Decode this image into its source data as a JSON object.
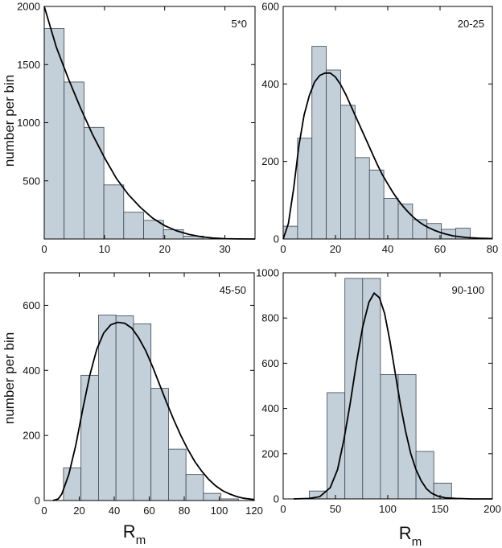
{
  "figure": {
    "ylabel_top": "number per bin",
    "ylabel_bottom": "number per bin",
    "xlabel_left": {
      "main": "R",
      "sub": "m"
    },
    "xlabel_right": {
      "main": "R",
      "sub": "m"
    }
  },
  "colors": {
    "bar_fill": "#c3cfd9",
    "bar_stroke": "#3c4650",
    "curve": "#000000"
  },
  "chart_data": [
    {
      "type": "bar",
      "label": "5*0",
      "xlim": [
        0,
        35
      ],
      "ylim": [
        0,
        2000
      ],
      "xticks": [
        0,
        10,
        20,
        30
      ],
      "yticks": [
        500,
        1000,
        1500,
        2000
      ],
      "bins": [
        {
          "x0": 0,
          "x1": 3.3,
          "value": 1810
        },
        {
          "x0": 3.3,
          "x1": 6.6,
          "value": 1350
        },
        {
          "x0": 6.6,
          "x1": 9.9,
          "value": 960
        },
        {
          "x0": 9.9,
          "x1": 13.2,
          "value": 465
        },
        {
          "x0": 13.2,
          "x1": 16.5,
          "value": 230
        },
        {
          "x0": 16.5,
          "x1": 19.8,
          "value": 160
        },
        {
          "x0": 19.8,
          "x1": 23.1,
          "value": 80
        },
        {
          "x0": 23.1,
          "x1": 26.4,
          "value": 25
        }
      ],
      "fit": [
        [
          0,
          2000
        ],
        [
          2,
          1650
        ],
        [
          4,
          1380
        ],
        [
          6,
          1130
        ],
        [
          8,
          900
        ],
        [
          10,
          700
        ],
        [
          12,
          520
        ],
        [
          14,
          380
        ],
        [
          16,
          270
        ],
        [
          18,
          180
        ],
        [
          20,
          115
        ],
        [
          22,
          70
        ],
        [
          24,
          40
        ],
        [
          26,
          20
        ],
        [
          28,
          8
        ],
        [
          30,
          3
        ],
        [
          32,
          1
        ],
        [
          35,
          0
        ]
      ]
    },
    {
      "type": "bar",
      "label": "20-25",
      "xlim": [
        0,
        80
      ],
      "ylim": [
        0,
        600
      ],
      "xticks": [
        0,
        20,
        40,
        60,
        80
      ],
      "yticks": [
        0,
        200,
        400,
        600
      ],
      "bins": [
        {
          "x0": 0,
          "x1": 5.5,
          "value": 33
        },
        {
          "x0": 5.5,
          "x1": 11,
          "value": 260
        },
        {
          "x0": 11,
          "x1": 16.5,
          "value": 497
        },
        {
          "x0": 16.5,
          "x1": 22,
          "value": 436
        },
        {
          "x0": 22,
          "x1": 27.5,
          "value": 345
        },
        {
          "x0": 27.5,
          "x1": 33,
          "value": 210
        },
        {
          "x0": 33,
          "x1": 38.5,
          "value": 178
        },
        {
          "x0": 38.5,
          "x1": 44,
          "value": 105
        },
        {
          "x0": 44,
          "x1": 49.5,
          "value": 90
        },
        {
          "x0": 49.5,
          "x1": 55,
          "value": 50
        },
        {
          "x0": 55,
          "x1": 60.5,
          "value": 40
        },
        {
          "x0": 60.5,
          "x1": 66,
          "value": 25
        },
        {
          "x0": 66,
          "x1": 71.5,
          "value": 28
        }
      ],
      "fit": [
        [
          0,
          0
        ],
        [
          2,
          40
        ],
        [
          4,
          130
        ],
        [
          6,
          240
        ],
        [
          8,
          320
        ],
        [
          10,
          370
        ],
        [
          12,
          405
        ],
        [
          14,
          422
        ],
        [
          16,
          428
        ],
        [
          18,
          428
        ],
        [
          20,
          418
        ],
        [
          22,
          398
        ],
        [
          24,
          372
        ],
        [
          26,
          342
        ],
        [
          28,
          312
        ],
        [
          30,
          282
        ],
        [
          32,
          252
        ],
        [
          34,
          222
        ],
        [
          36,
          192
        ],
        [
          38,
          165
        ],
        [
          40,
          142
        ],
        [
          42,
          120
        ],
        [
          44,
          100
        ],
        [
          46,
          83
        ],
        [
          48,
          68
        ],
        [
          50,
          55
        ],
        [
          52,
          44
        ],
        [
          54,
          35
        ],
        [
          56,
          28
        ],
        [
          58,
          22
        ],
        [
          60,
          17
        ],
        [
          62,
          13
        ],
        [
          65,
          8
        ],
        [
          70,
          4
        ],
        [
          75,
          2
        ],
        [
          80,
          1
        ]
      ]
    },
    {
      "type": "bar",
      "label": "45-50",
      "xlim": [
        0,
        120
      ],
      "ylim": [
        0,
        700
      ],
      "xticks": [
        0,
        20,
        40,
        60,
        80,
        100,
        120
      ],
      "yticks": [
        0,
        200,
        400,
        600
      ],
      "bins": [
        {
          "x0": 11,
          "x1": 21,
          "value": 100
        },
        {
          "x0": 21,
          "x1": 31,
          "value": 385
        },
        {
          "x0": 31,
          "x1": 41,
          "value": 570
        },
        {
          "x0": 41,
          "x1": 51,
          "value": 568
        },
        {
          "x0": 51,
          "x1": 61,
          "value": 543
        },
        {
          "x0": 61,
          "x1": 71,
          "value": 345
        },
        {
          "x0": 71,
          "x1": 81,
          "value": 158
        },
        {
          "x0": 81,
          "x1": 91,
          "value": 80
        },
        {
          "x0": 91,
          "x1": 101,
          "value": 22
        },
        {
          "x0": 101,
          "x1": 111,
          "value": 5
        }
      ],
      "fit": [
        [
          5,
          0
        ],
        [
          8,
          5
        ],
        [
          10,
          20
        ],
        [
          14,
          80
        ],
        [
          18,
          170
        ],
        [
          22,
          280
        ],
        [
          26,
          385
        ],
        [
          30,
          465
        ],
        [
          34,
          515
        ],
        [
          38,
          540
        ],
        [
          42,
          548
        ],
        [
          46,
          545
        ],
        [
          50,
          530
        ],
        [
          54,
          500
        ],
        [
          58,
          460
        ],
        [
          62,
          410
        ],
        [
          66,
          355
        ],
        [
          70,
          300
        ],
        [
          74,
          248
        ],
        [
          78,
          200
        ],
        [
          82,
          158
        ],
        [
          86,
          120
        ],
        [
          90,
          90
        ],
        [
          94,
          65
        ],
        [
          98,
          45
        ],
        [
          102,
          30
        ],
        [
          106,
          20
        ],
        [
          110,
          12
        ],
        [
          114,
          7
        ],
        [
          120,
          3
        ]
      ]
    },
    {
      "type": "bar",
      "label": "90-100",
      "xlim": [
        0,
        200
      ],
      "ylim": [
        0,
        1000
      ],
      "xticks": [
        0,
        50,
        100,
        150,
        200
      ],
      "yticks": [
        0,
        200,
        400,
        600,
        800,
        1000
      ],
      "bins": [
        {
          "x0": 25,
          "x1": 42,
          "value": 35
        },
        {
          "x0": 42,
          "x1": 59,
          "value": 470
        },
        {
          "x0": 59,
          "x1": 76,
          "value": 975
        },
        {
          "x0": 76,
          "x1": 93,
          "value": 975
        },
        {
          "x0": 93,
          "x1": 110,
          "value": 550
        },
        {
          "x0": 110,
          "x1": 127,
          "value": 550
        },
        {
          "x0": 127,
          "x1": 144,
          "value": 210
        },
        {
          "x0": 144,
          "x1": 161,
          "value": 70
        }
      ],
      "fit": [
        [
          10,
          0
        ],
        [
          25,
          2
        ],
        [
          35,
          10
        ],
        [
          45,
          50
        ],
        [
          52,
          130
        ],
        [
          58,
          260
        ],
        [
          64,
          420
        ],
        [
          70,
          600
        ],
        [
          76,
          760
        ],
        [
          82,
          870
        ],
        [
          87,
          910
        ],
        [
          92,
          890
        ],
        [
          97,
          820
        ],
        [
          102,
          700
        ],
        [
          107,
          560
        ],
        [
          112,
          420
        ],
        [
          117,
          300
        ],
        [
          122,
          200
        ],
        [
          127,
          130
        ],
        [
          132,
          80
        ],
        [
          137,
          45
        ],
        [
          142,
          25
        ],
        [
          148,
          12
        ],
        [
          155,
          5
        ],
        [
          165,
          2
        ],
        [
          180,
          0
        ],
        [
          200,
          0
        ]
      ]
    }
  ]
}
